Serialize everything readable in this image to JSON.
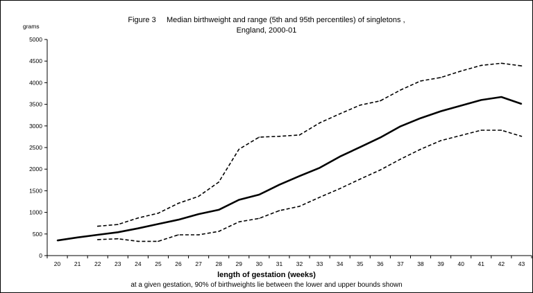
{
  "title": {
    "line1": "Figure 3     Median birthweight and range (5th and 95th percentiles) of singletons ,",
    "line2": "England, 2000-01"
  },
  "ylabel": "grams",
  "xlabel": "length of gestation (weeks)",
  "footnote": "at a given gestation, 90% of birthweights lie between the lower and upper bounds shown",
  "chart_data": {
    "type": "line",
    "title": "Figure 3     Median birthweight and range (5th and 95th percentiles) of singletons , England, 2000-01",
    "xlabel": "length of gestation (weeks)",
    "ylabel": "grams",
    "x": [
      20,
      21,
      22,
      23,
      24,
      25,
      26,
      27,
      28,
      29,
      30,
      31,
      32,
      33,
      34,
      35,
      36,
      37,
      38,
      39,
      40,
      41,
      42,
      43
    ],
    "xticks": [
      "20",
      "21",
      "22",
      "23",
      "24",
      "25",
      "26",
      "27",
      "28",
      "29",
      "30",
      "31",
      "32",
      "33",
      "34",
      "35",
      "36",
      "37",
      "38",
      "39",
      "40",
      "41",
      "42",
      "43"
    ],
    "yticks": [
      0,
      500,
      1000,
      1500,
      2000,
      2500,
      3000,
      3500,
      4000,
      4500,
      5000
    ],
    "ylim": [
      0,
      5000
    ],
    "grid": false,
    "series": [
      {
        "name": "",
        "style": "solid",
        "x": [
          20,
          21,
          22,
          23,
          24,
          25,
          26,
          27,
          28,
          29,
          30,
          31,
          32,
          33,
          34,
          35,
          36,
          37,
          38,
          39,
          40,
          41,
          42,
          43
        ],
        "values": [
          350,
          420,
          480,
          540,
          630,
          730,
          830,
          960,
          1060,
          1290,
          1410,
          1640,
          1840,
          2030,
          2290,
          2510,
          2730,
          2990,
          3180,
          3340,
          3470,
          3600,
          3670,
          3510
        ]
      },
      {
        "name": "",
        "style": "dashed",
        "x": [
          22,
          23,
          24,
          25,
          26,
          27,
          28,
          29,
          30,
          31,
          32,
          33,
          34,
          35,
          36,
          37,
          38,
          39,
          40,
          41,
          42,
          43
        ],
        "values": [
          680,
          720,
          870,
          980,
          1210,
          1370,
          1700,
          2460,
          2740,
          2760,
          2790,
          3070,
          3280,
          3480,
          3580,
          3830,
          4040,
          4120,
          4270,
          4400,
          4450,
          4390
        ]
      },
      {
        "name": "",
        "style": "dashed",
        "x": [
          22,
          23,
          24,
          25,
          26,
          27,
          28,
          29,
          30,
          31,
          32,
          33,
          34,
          35,
          36,
          37,
          38,
          39,
          40,
          41,
          42,
          43
        ],
        "values": [
          370,
          390,
          330,
          330,
          480,
          480,
          560,
          780,
          860,
          1040,
          1140,
          1350,
          1550,
          1770,
          1980,
          2230,
          2460,
          2660,
          2780,
          2900,
          2900,
          2760
        ]
      }
    ]
  }
}
